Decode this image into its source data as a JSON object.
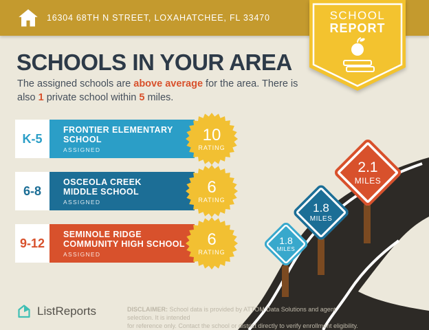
{
  "header": {
    "address": "16304 68TH N STREET, LOXAHATCHEE, FL 33470"
  },
  "ribbon": {
    "line1": "SCHOOL",
    "line2": "REPORT"
  },
  "title": "SCHOOLS IN YOUR AREA",
  "subtitle": {
    "segments": [
      {
        "text": "The assigned schools are "
      },
      {
        "text": "above average",
        "em": true
      },
      {
        "text": " for the area. There is also "
      },
      {
        "text": "1",
        "em": true
      },
      {
        "text": " private school within "
      },
      {
        "text": "5",
        "em": true
      },
      {
        "text": " miles."
      }
    ]
  },
  "schools": [
    {
      "grades": "K-5",
      "name_line1": "FRONTIER ELEMENTARY",
      "name_line2": "SCHOOL",
      "status": "ASSIGNED",
      "rating": "10",
      "rating_label": "RATING",
      "color": "#2B9EC7"
    },
    {
      "grades": "6-8",
      "name_line1": "OSCEOLA CREEK",
      "name_line2": "MIDDLE SCHOOL",
      "status": "ASSIGNED",
      "rating": "6",
      "rating_label": "RATING",
      "color": "#1C6E96"
    },
    {
      "grades": "9-12",
      "name_line1": "SEMINOLE RIDGE",
      "name_line2": "COMMUNITY HIGH SCHOOL",
      "status": "ASSIGNED",
      "rating": "6",
      "rating_label": "RATING",
      "color": "#D8512C"
    }
  ],
  "signs": [
    {
      "value": "1.8",
      "unit": "MILES",
      "color": "#38A8CC"
    },
    {
      "value": "1.8",
      "unit": "MILES",
      "color": "#1C6E96"
    },
    {
      "value": "2.1",
      "unit": "MILES",
      "color": "#D8512C"
    }
  ],
  "footer": {
    "brand": "ListReports",
    "disclaimer_label": "DISCLAIMER:",
    "disclaimer_line1": " School data is provided by ATTOM Data Solutions and agent selection. It is intended",
    "disclaimer_line2": "for reference only. Contact the school or district directly to verify enrollment eligibility."
  },
  "colors": {
    "background": "#ECE8DB",
    "topbar_gold": "#C49A2E",
    "ribbon_yellow": "#F3C32F",
    "title_navy": "#2D3A48",
    "accent_orange": "#D8512C",
    "elementary_blue": "#2B9EC7",
    "middle_blue": "#1C6E96",
    "high_red": "#D8512C",
    "starburst_yellow": "#F2C032",
    "road_dark": "#2D2A26",
    "post_brown": "#7B4A21",
    "logo_teal": "#3FBFB4"
  }
}
